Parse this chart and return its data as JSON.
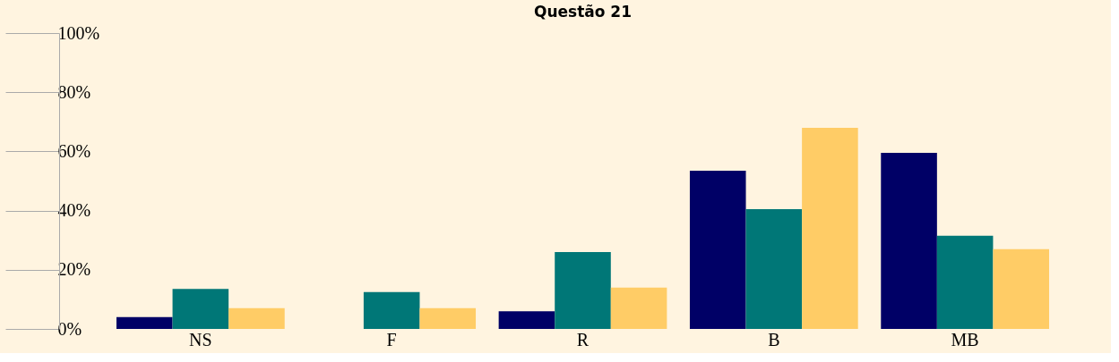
{
  "chart_data": {
    "type": "bar",
    "title": "Questão 21",
    "categories": [
      "NS",
      "F",
      "R",
      "B",
      "MB"
    ],
    "series": [
      {
        "color": "#000066",
        "values": [
          4,
          0,
          6,
          53.5,
          59.5
        ]
      },
      {
        "color": "#007777",
        "values": [
          13.5,
          12.5,
          26,
          40.5,
          31.5
        ]
      },
      {
        "color": "#ffcc66",
        "values": [
          7,
          7,
          14,
          68,
          27
        ]
      }
    ],
    "ylim": [
      0,
      100
    ],
    "yticks": [
      {
        "value": 0,
        "label": "0%"
      },
      {
        "value": 20,
        "label": "20%"
      },
      {
        "value": 40,
        "label": "40%"
      },
      {
        "value": 60,
        "label": "60%"
      },
      {
        "value": 80,
        "label": "80%"
      },
      {
        "value": 100,
        "label": "100%"
      }
    ],
    "grid": false,
    "legend": false
  }
}
